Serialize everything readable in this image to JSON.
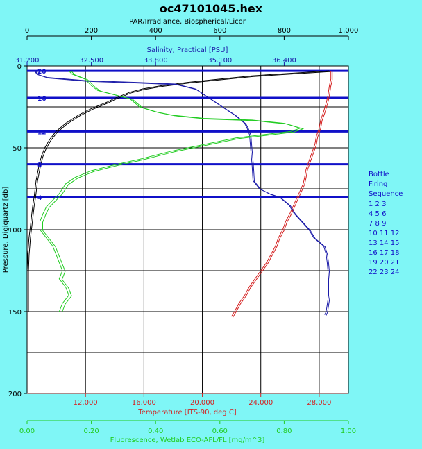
{
  "window": {
    "title": "oc47101045.hex"
  },
  "colors": {
    "background": "#7ff6f6",
    "plot_bg": "#ffffff",
    "par": "#000000",
    "salinity": "#1a1aa8",
    "temperature": "#d42020",
    "fluorescence": "#22cc22",
    "bottle_lines": "#1010c8"
  },
  "chart_data": {
    "type": "line",
    "title": "oc47101045.hex",
    "y_axis": {
      "label": "Pressure, Digiquartz [db]",
      "range": [
        0,
        200
      ],
      "ticks": [
        "0",
        "50",
        "100",
        "150",
        "200"
      ],
      "reversed": true
    },
    "axes": {
      "par": {
        "label": "PAR/Irradiance, Biospherical/Licor",
        "range": [
          0,
          1000
        ],
        "ticks": [
          "0",
          "200",
          "400",
          "600",
          "800",
          "1,000"
        ]
      },
      "salinity": {
        "label": "Salinity, Practical [PSU]",
        "range": [
          31.2,
          37.7
        ],
        "ticks": [
          "31.200",
          "32.500",
          "33.800",
          "35.100",
          "36.400"
        ]
      },
      "temperature": {
        "label": "Temperature [ITS-90, deg C]",
        "range": [
          8,
          30
        ],
        "ticks": [
          "12.000",
          "16.000",
          "20.000",
          "24.000",
          "28.000"
        ]
      },
      "fluorescence": {
        "label": "Fluorescence, Wetlab ECO-AFL/FL [mg/m^3]",
        "range": [
          0,
          1.0
        ],
        "ticks": [
          "0.00",
          "0.20",
          "0.40",
          "0.60",
          "0.80",
          "1.00"
        ]
      }
    },
    "grid": true,
    "bottles": [
      {
        "label": "20",
        "pressure": 3
      },
      {
        "label": "16",
        "pressure": 19.5
      },
      {
        "label": "12",
        "pressure": 40
      },
      {
        "label": "8",
        "pressure": 60
      },
      {
        "label": "4",
        "pressure": 80
      }
    ],
    "series": [
      {
        "key": "par",
        "points": [
          [
            940,
            3
          ],
          [
            700,
            6
          ],
          [
            600,
            8
          ],
          [
            500,
            10
          ],
          [
            420,
            12
          ],
          [
            360,
            14
          ],
          [
            320,
            16
          ],
          [
            270,
            20
          ],
          [
            250,
            22
          ],
          [
            200,
            26
          ],
          [
            160,
            30
          ],
          [
            120,
            35
          ],
          [
            90,
            40
          ],
          [
            70,
            45
          ],
          [
            55,
            50
          ],
          [
            45,
            55
          ],
          [
            38,
            60
          ],
          [
            33,
            65
          ],
          [
            28,
            70
          ],
          [
            25,
            75
          ],
          [
            22,
            80
          ],
          [
            18,
            85
          ],
          [
            15,
            90
          ],
          [
            12,
            95
          ],
          [
            9,
            100
          ],
          [
            6,
            105
          ],
          [
            4,
            110
          ],
          [
            2,
            115
          ],
          [
            1,
            120
          ],
          [
            0,
            125
          ],
          [
            0,
            150
          ]
        ]
      },
      {
        "key": "salinity",
        "points": [
          [
            31.35,
            3
          ],
          [
            31.4,
            5
          ],
          [
            31.6,
            7
          ],
          [
            32.4,
            9
          ],
          [
            33.4,
            10
          ],
          [
            34.2,
            11
          ],
          [
            34.6,
            14
          ],
          [
            34.8,
            18
          ],
          [
            35.0,
            22
          ],
          [
            35.2,
            26
          ],
          [
            35.4,
            30
          ],
          [
            35.6,
            35
          ],
          [
            35.65,
            38
          ],
          [
            35.7,
            42
          ],
          [
            35.72,
            50
          ],
          [
            35.75,
            60
          ],
          [
            35.77,
            70
          ],
          [
            35.9,
            75
          ],
          [
            36.1,
            78
          ],
          [
            36.3,
            80
          ],
          [
            36.5,
            85
          ],
          [
            36.6,
            90
          ],
          [
            36.75,
            95
          ],
          [
            36.9,
            100
          ],
          [
            37.0,
            105
          ],
          [
            37.2,
            110
          ],
          [
            37.25,
            115
          ],
          [
            37.27,
            120
          ],
          [
            37.3,
            130
          ],
          [
            37.3,
            140
          ],
          [
            37.25,
            150
          ],
          [
            37.22,
            152
          ]
        ]
      },
      {
        "key": "temperature",
        "points": [
          [
            28.8,
            3
          ],
          [
            28.8,
            8
          ],
          [
            28.7,
            12
          ],
          [
            28.6,
            18
          ],
          [
            28.5,
            22
          ],
          [
            28.3,
            28
          ],
          [
            28.1,
            33
          ],
          [
            28.0,
            38
          ],
          [
            27.8,
            43
          ],
          [
            27.7,
            48
          ],
          [
            27.5,
            53
          ],
          [
            27.3,
            58
          ],
          [
            27.1,
            63
          ],
          [
            27.0,
            68
          ],
          [
            26.9,
            72
          ],
          [
            26.7,
            76
          ],
          [
            26.5,
            80
          ],
          [
            26.3,
            84
          ],
          [
            26.0,
            90
          ],
          [
            25.7,
            95
          ],
          [
            25.5,
            100
          ],
          [
            25.2,
            105
          ],
          [
            25.0,
            110
          ],
          [
            24.7,
            115
          ],
          [
            24.4,
            120
          ],
          [
            24.0,
            125
          ],
          [
            23.6,
            130
          ],
          [
            23.2,
            135
          ],
          [
            22.9,
            140
          ],
          [
            22.5,
            145
          ],
          [
            22.2,
            150
          ],
          [
            22.0,
            153
          ]
        ]
      },
      {
        "key": "fluorescence",
        "points": [
          [
            0.13,
            3
          ],
          [
            0.14,
            5
          ],
          [
            0.18,
            8
          ],
          [
            0.2,
            12
          ],
          [
            0.22,
            15
          ],
          [
            0.28,
            18
          ],
          [
            0.32,
            20
          ],
          [
            0.35,
            25
          ],
          [
            0.4,
            28
          ],
          [
            0.45,
            30
          ],
          [
            0.55,
            32
          ],
          [
            0.7,
            33
          ],
          [
            0.8,
            35
          ],
          [
            0.85,
            38
          ],
          [
            0.82,
            40
          ],
          [
            0.65,
            44
          ],
          [
            0.55,
            48
          ],
          [
            0.45,
            52
          ],
          [
            0.35,
            57
          ],
          [
            0.28,
            60
          ],
          [
            0.2,
            64
          ],
          [
            0.15,
            68
          ],
          [
            0.12,
            72
          ],
          [
            0.1,
            78
          ],
          [
            0.08,
            82
          ],
          [
            0.06,
            86
          ],
          [
            0.05,
            90
          ],
          [
            0.04,
            95
          ],
          [
            0.04,
            100
          ],
          [
            0.06,
            105
          ],
          [
            0.08,
            110
          ],
          [
            0.09,
            115
          ],
          [
            0.1,
            120
          ],
          [
            0.11,
            125
          ],
          [
            0.1,
            130
          ],
          [
            0.12,
            135
          ],
          [
            0.13,
            140
          ],
          [
            0.11,
            145
          ],
          [
            0.1,
            150
          ]
        ]
      }
    ],
    "legend": {
      "title": [
        "Bottle",
        "Firing",
        "Sequence"
      ],
      "rows": [
        "1  2  3",
        "4  5  6",
        "7  8  9",
        "10 11 12",
        "13 14 15",
        "16 17 18",
        "19 20 21",
        "22 23 24"
      ]
    }
  }
}
